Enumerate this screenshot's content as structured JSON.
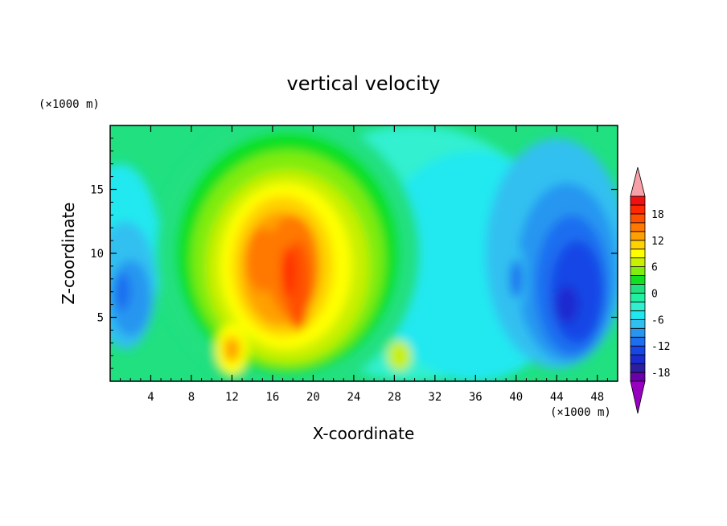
{
  "chart_data": {
    "type": "heatmap",
    "title": "vertical velocity",
    "xlabel": "X-coordinate",
    "ylabel": "Z-coordinate",
    "x_unit": "(×1000 m)",
    "y_unit": "(×1000 m)",
    "xlim": [
      0,
      50
    ],
    "ylim": [
      0,
      20
    ],
    "x_ticks": [
      4,
      8,
      12,
      16,
      20,
      24,
      28,
      32,
      36,
      40,
      44,
      48
    ],
    "y_ticks": [
      5,
      10,
      15
    ],
    "colorbar": {
      "levels": [
        -20,
        -18,
        -16,
        -14,
        -12,
        -10,
        -8,
        -6,
        -4,
        -2,
        0,
        2,
        4,
        6,
        8,
        10,
        12,
        14,
        16,
        18,
        20
      ],
      "labels": [
        18,
        12,
        6,
        0,
        -6,
        -12,
        -18
      ],
      "colors": [
        "#6a00a8",
        "#2a1fa0",
        "#1c2bd0",
        "#1646e6",
        "#1e6ef0",
        "#2896f0",
        "#30c0f0",
        "#20e8f0",
        "#30f0d0",
        "#20f0a0",
        "#20e080",
        "#10e020",
        "#80ec10",
        "#c8f000",
        "#ffff00",
        "#ffd200",
        "#ffa000",
        "#ff7800",
        "#ff5000",
        "#ff2800",
        "#f01010"
      ],
      "over_color": "#f8a0a8",
      "under_color": "#9800c0"
    },
    "field_features": [
      {
        "desc": "updraft core",
        "x": 18,
        "z": 9,
        "value": 19
      },
      {
        "desc": "updraft secondary",
        "x": 15,
        "z": 10,
        "value": 15
      },
      {
        "desc": "updraft lower",
        "x": 12,
        "z": 2.5,
        "value": 11
      },
      {
        "desc": "downdraft right",
        "x": 45,
        "z": 7.5,
        "value": -15
      },
      {
        "desc": "downdraft left",
        "x": 1.5,
        "z": 7,
        "value": -10
      }
    ]
  }
}
